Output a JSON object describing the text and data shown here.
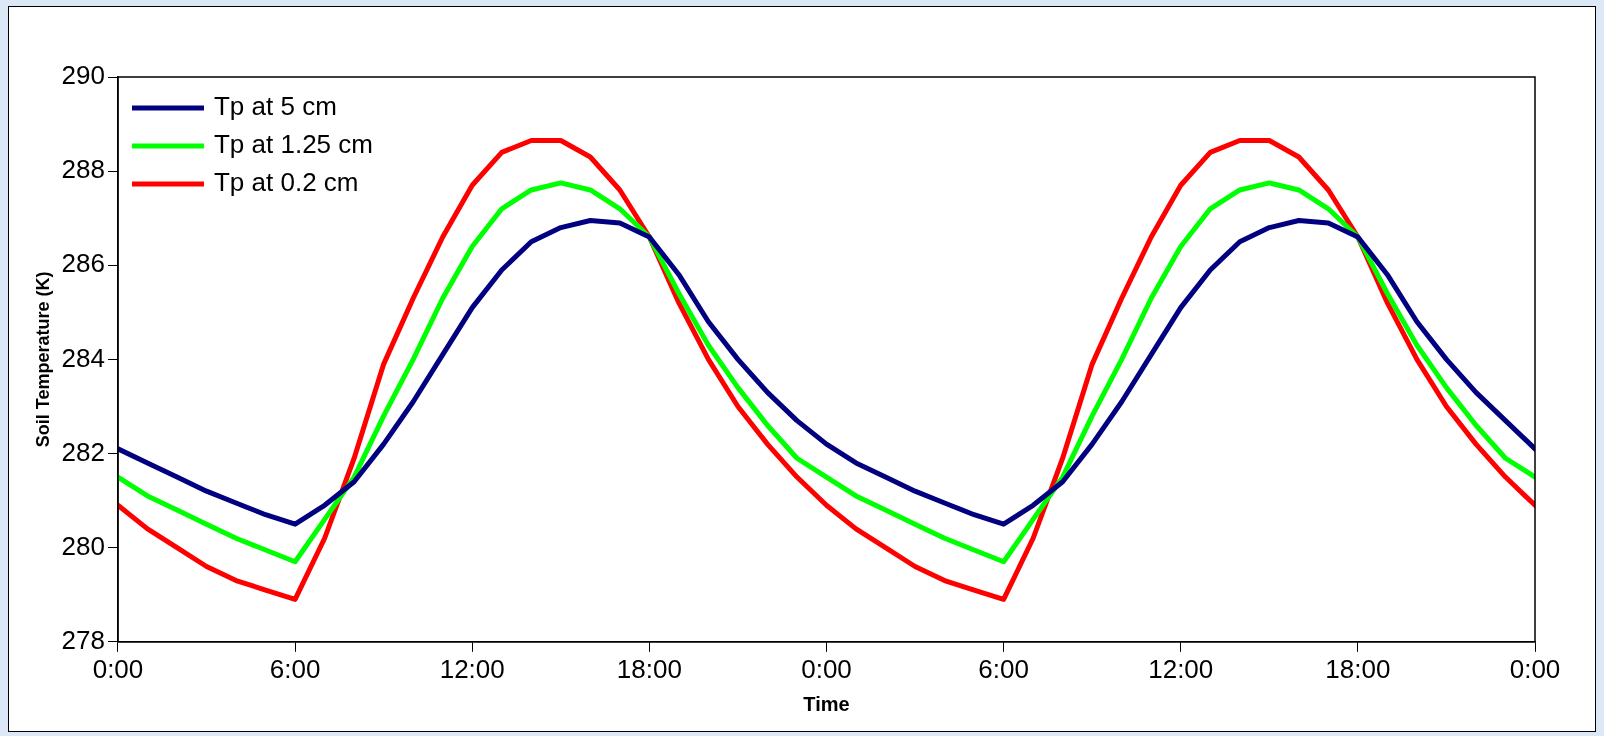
{
  "chart_data": {
    "type": "line",
    "xlabel": "Time",
    "ylabel": "Soil Temperature (K)",
    "x": [
      "--01-01T00:00",
      "--01-01T01:00",
      "--01-01T02:00",
      "--01-01T03:00",
      "--01-01T04:00",
      "--01-01T05:00",
      "--01-01T06:00",
      "--01-01T07:00",
      "--01-01T08:00",
      "--01-01T09:00",
      "--01-01T10:00",
      "--01-01T11:00",
      "--01-01T12:00",
      "--01-01T13:00",
      "--01-01T14:00",
      "--01-01T15:00",
      "--01-01T16:00",
      "--01-01T17:00",
      "--01-01T18:00",
      "--01-01T19:00",
      "--01-01T20:00",
      "--01-01T21:00",
      "--01-01T22:00",
      "--01-01T23:00",
      "--01-02T00:00",
      "--01-02T01:00",
      "--01-02T02:00",
      "--01-02T03:00",
      "--01-02T04:00",
      "--01-02T05:00",
      "--01-02T06:00",
      "--01-02T07:00",
      "--01-02T08:00",
      "--01-02T09:00",
      "--01-02T10:00",
      "--01-02T11:00",
      "--01-02T12:00",
      "--01-02T13:00",
      "--01-02T14:00",
      "--01-02T15:00",
      "--01-02T16:00",
      "--01-02T17:00",
      "--01-02T18:00",
      "--01-02T19:00",
      "--01-02T20:00",
      "--01-02T21:00",
      "--01-02T22:00",
      "--01-02T23:00",
      "--01-03T00:00"
    ],
    "series": [
      {
        "name": "Tp at 5 cm",
        "color": "#000080",
        "values": [
          282.1,
          281.8,
          281.5,
          281.2,
          280.95,
          280.7,
          280.5,
          280.9,
          281.4,
          282.2,
          283.1,
          284.1,
          285.1,
          285.9,
          286.5,
          286.8,
          286.95,
          286.9,
          286.6,
          285.8,
          284.8,
          284.0,
          283.3,
          282.7,
          282.2,
          281.8,
          281.5,
          281.2,
          280.95,
          280.7,
          280.5,
          280.9,
          281.4,
          282.2,
          283.1,
          284.1,
          285.1,
          285.9,
          286.5,
          286.8,
          286.95,
          286.9,
          286.6,
          285.8,
          284.8,
          284.0,
          283.3,
          282.7,
          282.1
        ]
      },
      {
        "name": "Tp at 1.25 cm",
        "color": "#00ff00",
        "values": [
          281.5,
          281.1,
          280.8,
          280.5,
          280.2,
          279.95,
          279.7,
          280.6,
          281.5,
          282.8,
          284.0,
          285.3,
          286.4,
          287.2,
          287.6,
          287.75,
          287.6,
          287.2,
          286.6,
          285.4,
          284.3,
          283.4,
          282.6,
          281.9,
          281.5,
          281.1,
          280.8,
          280.5,
          280.2,
          279.95,
          279.7,
          280.6,
          281.5,
          282.8,
          284.0,
          285.3,
          286.4,
          287.2,
          287.6,
          287.75,
          287.6,
          287.2,
          286.6,
          285.4,
          284.3,
          283.4,
          282.6,
          281.9,
          281.5
        ]
      },
      {
        "name": "Tp at 0.2 cm",
        "color": "#ff0000",
        "values": [
          280.9,
          280.4,
          280.0,
          279.6,
          279.3,
          279.1,
          278.9,
          280.2,
          281.9,
          283.9,
          285.3,
          286.6,
          287.7,
          288.4,
          288.65,
          288.65,
          288.3,
          287.6,
          286.6,
          285.2,
          284.0,
          283.0,
          282.2,
          281.5,
          280.9,
          280.4,
          280.0,
          279.6,
          279.3,
          279.1,
          278.9,
          280.2,
          281.9,
          283.9,
          285.3,
          286.6,
          287.7,
          288.4,
          288.65,
          288.65,
          288.3,
          287.6,
          286.6,
          285.2,
          284.0,
          283.0,
          282.2,
          281.5,
          280.9
        ]
      }
    ],
    "xlim": [
      "--01-01T00:00",
      "--01-03T00:00"
    ],
    "xticks": [
      {
        "value": "--01-01T00:00",
        "label": "0:00"
      },
      {
        "value": "--01-01T06:00",
        "label": "6:00"
      },
      {
        "value": "--01-01T12:00",
        "label": "12:00"
      },
      {
        "value": "--01-01T18:00",
        "label": "18:00"
      },
      {
        "value": "--01-02T00:00",
        "label": "0:00"
      },
      {
        "value": "--01-02T06:00",
        "label": "6:00"
      },
      {
        "value": "--01-02T12:00",
        "label": "12:00"
      },
      {
        "value": "--01-02T18:00",
        "label": "18:00"
      },
      {
        "value": "--01-03T00:00",
        "label": "0:00"
      }
    ],
    "ylim": [
      278,
      290
    ],
    "yticks": [
      278,
      280,
      282,
      284,
      286,
      288,
      290
    ],
    "grid": false,
    "legend": "top left",
    "marker": "none",
    "line_style": "solid"
  }
}
